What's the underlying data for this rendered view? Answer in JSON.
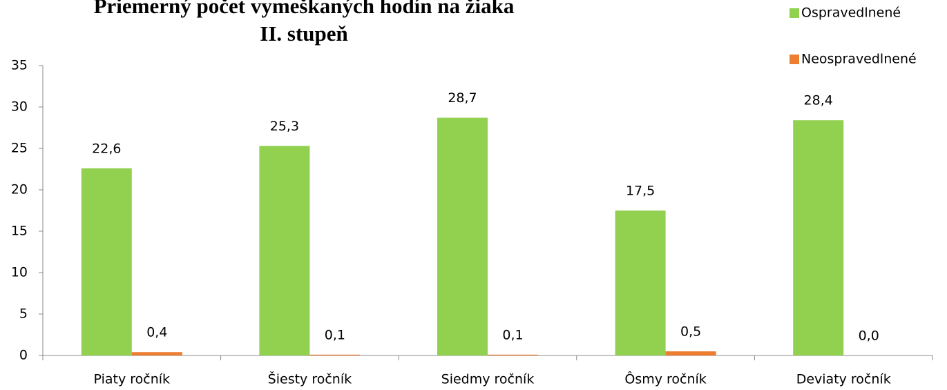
{
  "chart_data": {
    "type": "bar",
    "title": "Priemerný počet vymeškaných hodín na žiaka",
    "subtitle": "II. stupeň",
    "categories": [
      "Piaty ročník",
      "Šiesty ročník",
      "Siedmy ročník",
      "Ôsmy ročník",
      "Deviaty ročník"
    ],
    "series": [
      {
        "name": "Ospravedlnené",
        "color": "#92d050",
        "values": [
          22.6,
          25.3,
          28.7,
          17.5,
          28.4
        ],
        "value_labels": [
          "22,6",
          "25,3",
          "28,7",
          "17,5",
          "28,4"
        ]
      },
      {
        "name": "Neospravedlnené",
        "color": "#ed7d31",
        "values": [
          0.4,
          0.1,
          0.1,
          0.5,
          0.0
        ],
        "value_labels": [
          "0,4",
          "0,1",
          "0,1",
          "0,5",
          "0,0"
        ]
      }
    ],
    "ylim": [
      0,
      35
    ],
    "yticks": [
      0,
      5,
      10,
      15,
      20,
      25,
      30,
      35
    ],
    "grid": false,
    "legend": "top-right"
  }
}
